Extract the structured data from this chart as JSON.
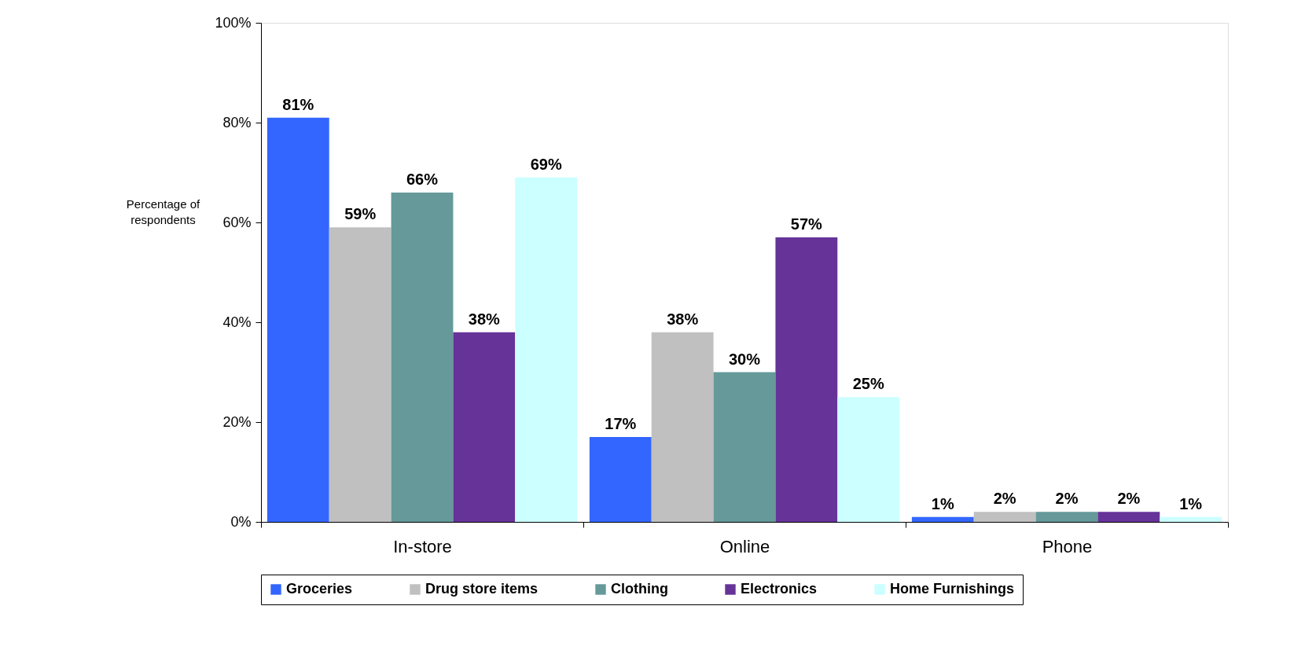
{
  "chart_data": {
    "type": "bar",
    "ylabel": "Percentage of respondents",
    "categories": [
      "In-store",
      "Online",
      "Phone"
    ],
    "series": [
      {
        "name": "Groceries",
        "color": "#3366ff",
        "values": [
          81,
          17,
          1
        ],
        "value_labels": [
          "81%",
          "17%",
          "1%"
        ]
      },
      {
        "name": "Drug store items",
        "color": "#c0c0c0",
        "values": [
          59,
          38,
          2
        ],
        "value_labels": [
          "59%",
          "38%",
          "2%"
        ]
      },
      {
        "name": "Clothing",
        "color": "#669999",
        "values": [
          66,
          30,
          2
        ],
        "value_labels": [
          "66%",
          "30%",
          "2%"
        ]
      },
      {
        "name": "Electronics",
        "color": "#663399",
        "values": [
          38,
          57,
          2
        ],
        "value_labels": [
          "38%",
          "57%",
          "2%"
        ]
      },
      {
        "name": "Home Furnishings",
        "color": "#ccffff",
        "values": [
          69,
          25,
          1
        ],
        "value_labels": [
          "69%",
          "25%",
          "1%"
        ]
      }
    ],
    "ylim": [
      0,
      100
    ],
    "yticks": [
      {
        "value": 0,
        "label": "0%"
      },
      {
        "value": 20,
        "label": "20%"
      },
      {
        "value": 40,
        "label": "40%"
      },
      {
        "value": 60,
        "label": "60%"
      },
      {
        "value": 80,
        "label": "80%"
      },
      {
        "value": 100,
        "label": "100%"
      }
    ],
    "grid": false,
    "legend": "bottom"
  }
}
